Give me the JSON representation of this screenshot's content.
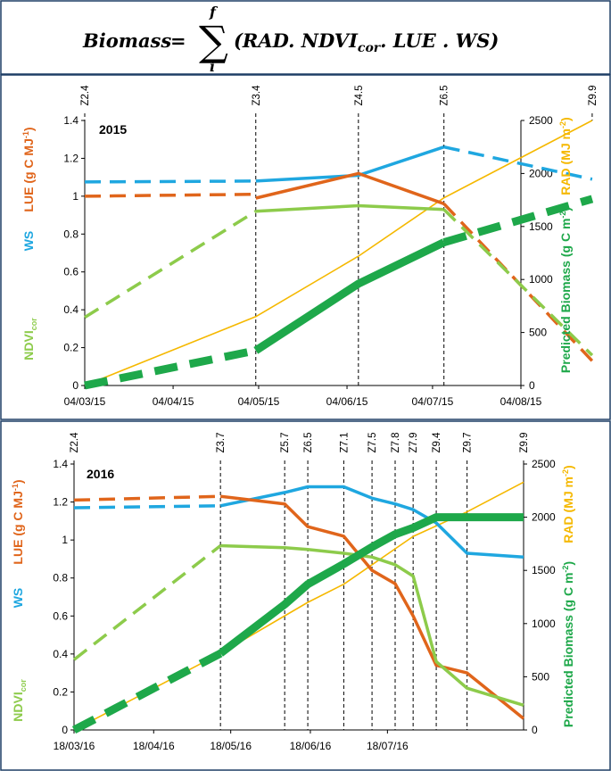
{
  "equation": {
    "lhs": "Biomass",
    "equals": "=",
    "sigma": "∑",
    "upper": "f",
    "lower": "i",
    "rhs_open": "(RAD. NDVI",
    "rhs_sub": "cor",
    "rhs_close": ". LUE . WS)"
  },
  "colors": {
    "lue": "#E0651B",
    "ws": "#1FA7E0",
    "ndvi": "#8DCB4B",
    "biomass": "#1EA84A",
    "rad": "#F5B800"
  },
  "chart_data": [
    {
      "type": "line",
      "year_label": "2015",
      "left_axis": {
        "ylim": [
          0,
          1.4
        ],
        "ticks": [
          "0",
          "0.2",
          "0.4",
          "0.6",
          "0.8",
          "1",
          "1.2",
          "1.4"
        ]
      },
      "right_axis": {
        "ylim": [
          0,
          2500
        ],
        "ticks": [
          "0",
          "500",
          "1000",
          "1500",
          "2000",
          "2500"
        ]
      },
      "x_ticks": [
        "04/03/15",
        "04/04/15",
        "04/05/15",
        "04/06/15",
        "04/07/15",
        "04/08/15"
      ],
      "left_labels": {
        "lue": "LUE (g C MJ",
        "lue_sup": "-1",
        "ws": "WS",
        "ndvi": "NDVI",
        "ndvi_sub": "cor"
      },
      "right_labels": {
        "rad": "RAD (MJ m",
        "rad_sup": "-2",
        "biomass": "Predicted Biomass (g C m",
        "biomass_sup": "-2"
      },
      "stages": [
        "Z2.4",
        "Z3.4",
        "Z4.5",
        "Z6.5",
        "Z9.9"
      ],
      "stage_days": [
        0,
        60,
        96,
        126,
        178
      ],
      "series": [
        {
          "key": "rad",
          "axis": "right",
          "segments": [
            {
              "style": "thin",
              "x": [
                0,
                60,
                96,
                126,
                178
              ],
              "y": [
                0,
                650,
                1220,
                1770,
                2500
              ]
            }
          ]
        },
        {
          "key": "ws",
          "axis": "left",
          "segments": [
            {
              "style": "dash",
              "x": [
                0,
                60
              ],
              "y": [
                1.075,
                1.08
              ]
            },
            {
              "style": "solid",
              "x": [
                60,
                96,
                126
              ],
              "y": [
                1.08,
                1.11,
                1.26
              ]
            },
            {
              "style": "dash",
              "x": [
                126,
                178
              ],
              "y": [
                1.26,
                1.09
              ]
            }
          ]
        },
        {
          "key": "lue",
          "axis": "left",
          "segments": [
            {
              "style": "dash",
              "x": [
                0,
                60
              ],
              "y": [
                1.0,
                1.01
              ]
            },
            {
              "style": "solid",
              "x": [
                60,
                96,
                126
              ],
              "y": [
                0.99,
                1.12,
                0.96
              ]
            },
            {
              "style": "dash",
              "x": [
                126,
                178
              ],
              "y": [
                0.96,
                0.13
              ]
            }
          ]
        },
        {
          "key": "ndvi",
          "axis": "left",
          "segments": [
            {
              "style": "dash",
              "x": [
                0,
                60
              ],
              "y": [
                0.36,
                0.92
              ]
            },
            {
              "style": "solid",
              "x": [
                60,
                96,
                126
              ],
              "y": [
                0.92,
                0.95,
                0.93
              ]
            },
            {
              "style": "dash",
              "x": [
                126,
                178
              ],
              "y": [
                0.93,
                0.16
              ]
            }
          ]
        },
        {
          "key": "biomass",
          "axis": "right",
          "segments": [
            {
              "style": "dash",
              "x": [
                0,
                60
              ],
              "y": [
                0,
                330
              ]
            },
            {
              "style": "solid",
              "x": [
                60,
                96,
                126
              ],
              "y": [
                330,
                960,
                1350
              ]
            },
            {
              "style": "dash",
              "x": [
                126,
                178
              ],
              "y": [
                1350,
                1760
              ]
            }
          ]
        }
      ]
    },
    {
      "type": "line",
      "year_label": "2016",
      "left_axis": {
        "ylim": [
          0,
          1.4
        ],
        "ticks": [
          "0",
          "0.2",
          "0.4",
          "0.6",
          "0.8",
          "1",
          "1.2",
          "1.4"
        ]
      },
      "right_axis": {
        "ylim": [
          0,
          2500
        ],
        "ticks": [
          "0",
          "500",
          "1000",
          "1500",
          "2000",
          "2500"
        ]
      },
      "x_ticks": [
        "18/03/16",
        "18/04/16",
        "18/05/16",
        "18/06/16",
        "18/07/16"
      ],
      "left_labels": {
        "lue": "LUE (g C MJ",
        "lue_sup": "-1",
        "ws": "WS",
        "ndvi": "NDVI",
        "ndvi_sub": "cor"
      },
      "right_labels": {
        "rad": "RAD (MJ m",
        "rad_sup": "-2",
        "biomass": "Predicted Biomass (g C m",
        "biomass_sup": "-2"
      },
      "stages": [
        "Z2.4",
        "Z3.7",
        "Z5.7",
        "Z6.5",
        "Z7.1",
        "Z7.5",
        "Z7.8",
        "Z7.9",
        "Z9.4",
        "Z9.7",
        "Z9.9"
      ],
      "stage_days": [
        0,
        57,
        82,
        91,
        105,
        116,
        125,
        132,
        141,
        153,
        175
      ],
      "series": [
        {
          "key": "rad",
          "axis": "right",
          "segments": [
            {
              "style": "thin",
              "x": [
                0,
                57,
                91,
                105,
                132,
                153,
                175
              ],
              "y": [
                0,
                720,
                1200,
                1370,
                1820,
                2050,
                2330
              ]
            }
          ]
        },
        {
          "key": "ws",
          "axis": "left",
          "segments": [
            {
              "style": "dash",
              "x": [
                0,
                57
              ],
              "y": [
                1.17,
                1.18
              ]
            },
            {
              "style": "solid",
              "x": [
                57,
                82,
                91,
                105,
                116,
                125,
                132,
                141,
                153,
                175
              ],
              "y": [
                1.18,
                1.25,
                1.28,
                1.28,
                1.22,
                1.19,
                1.16,
                1.09,
                0.93,
                0.91
              ]
            }
          ]
        },
        {
          "key": "lue",
          "axis": "left",
          "segments": [
            {
              "style": "dash",
              "x": [
                0,
                57
              ],
              "y": [
                1.21,
                1.23
              ]
            },
            {
              "style": "solid",
              "x": [
                57,
                82,
                91,
                105,
                116,
                125,
                132,
                141,
                153,
                175
              ],
              "y": [
                1.23,
                1.19,
                1.07,
                1.02,
                0.84,
                0.77,
                0.6,
                0.34,
                0.3,
                0.06
              ]
            }
          ]
        },
        {
          "key": "ndvi",
          "axis": "left",
          "segments": [
            {
              "style": "dash",
              "x": [
                0,
                57
              ],
              "y": [
                0.37,
                0.97
              ]
            },
            {
              "style": "solid",
              "x": [
                57,
                82,
                91,
                105,
                116,
                125,
                132,
                141,
                153,
                175
              ],
              "y": [
                0.97,
                0.96,
                0.95,
                0.93,
                0.91,
                0.87,
                0.81,
                0.36,
                0.22,
                0.13
              ]
            }
          ]
        },
        {
          "key": "biomass",
          "axis": "right",
          "segments": [
            {
              "style": "dash",
              "x": [
                0,
                57
              ],
              "y": [
                0,
                720
              ]
            },
            {
              "style": "solid",
              "x": [
                57,
                82,
                91,
                105,
                116,
                125,
                132,
                141,
                153,
                175
              ],
              "y": [
                720,
                1180,
                1370,
                1560,
                1720,
                1840,
                1900,
                2000,
                2000,
                2000
              ]
            }
          ]
        }
      ]
    }
  ]
}
